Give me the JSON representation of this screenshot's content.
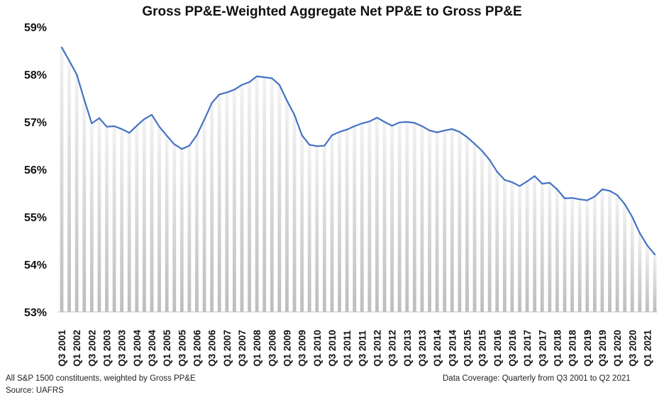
{
  "chart_data": {
    "type": "area",
    "title": "Gross PP&E-Weighted Aggregate Net PP&E to Gross PP&E",
    "xlabel": "",
    "ylabel": "",
    "ylim": [
      53,
      59
    ],
    "y_ticks": [
      "53%",
      "54%",
      "55%",
      "56%",
      "57%",
      "58%",
      "59%"
    ],
    "y_unit": "%",
    "x_tick_labels": [
      "Q3 2001",
      "Q1 2002",
      "Q3 2002",
      "Q1 2003",
      "Q3 2003",
      "Q1 2004",
      "Q3 2004",
      "Q1 2005",
      "Q3 2005",
      "Q1 2006",
      "Q3 2006",
      "Q1 2007",
      "Q3 2007",
      "Q1 2008",
      "Q3 2008",
      "Q1 2009",
      "Q3 2009",
      "Q1 2010",
      "Q3 2010",
      "Q1 2011",
      "Q3 2011",
      "Q1 2012",
      "Q3 2012",
      "Q1 2013",
      "Q3 2013",
      "Q1 2014",
      "Q3 2014",
      "Q1 2015",
      "Q3 2015",
      "Q1 2016",
      "Q3 2016",
      "Q1 2017",
      "Q3 2017",
      "Q1 2018",
      "Q3 2018",
      "Q1 2019",
      "Q3 2019",
      "Q1 2020",
      "Q3 2020",
      "Q1 2021"
    ],
    "categories": [
      "Q3 2001",
      "Q4 2001",
      "Q1 2002",
      "Q2 2002",
      "Q3 2002",
      "Q4 2002",
      "Q1 2003",
      "Q2 2003",
      "Q3 2003",
      "Q4 2003",
      "Q1 2004",
      "Q2 2004",
      "Q3 2004",
      "Q4 2004",
      "Q1 2005",
      "Q2 2005",
      "Q3 2005",
      "Q4 2005",
      "Q1 2006",
      "Q2 2006",
      "Q3 2006",
      "Q4 2006",
      "Q1 2007",
      "Q2 2007",
      "Q3 2007",
      "Q4 2007",
      "Q1 2008",
      "Q2 2008",
      "Q3 2008",
      "Q4 2008",
      "Q1 2009",
      "Q2 2009",
      "Q3 2009",
      "Q4 2009",
      "Q1 2010",
      "Q2 2010",
      "Q3 2010",
      "Q4 2010",
      "Q1 2011",
      "Q2 2011",
      "Q3 2011",
      "Q4 2011",
      "Q1 2012",
      "Q2 2012",
      "Q3 2012",
      "Q4 2012",
      "Q1 2013",
      "Q2 2013",
      "Q3 2013",
      "Q4 2013",
      "Q1 2014",
      "Q2 2014",
      "Q3 2014",
      "Q4 2014",
      "Q1 2015",
      "Q2 2015",
      "Q3 2015",
      "Q4 2015",
      "Q1 2016",
      "Q2 2016",
      "Q3 2016",
      "Q4 2016",
      "Q1 2017",
      "Q2 2017",
      "Q3 2017",
      "Q4 2017",
      "Q1 2018",
      "Q2 2018",
      "Q3 2018",
      "Q4 2018",
      "Q1 2019",
      "Q2 2019",
      "Q3 2019",
      "Q4 2019",
      "Q1 2020",
      "Q2 2020",
      "Q3 2020",
      "Q4 2020",
      "Q1 2021",
      "Q2 2021"
    ],
    "series": [
      {
        "values": [
          58.57,
          58.29,
          58.0,
          57.47,
          56.97,
          57.08,
          56.9,
          56.91,
          56.85,
          56.77,
          56.92,
          57.06,
          57.15,
          56.9,
          56.71,
          56.53,
          56.43,
          56.5,
          56.72,
          57.05,
          57.4,
          57.58,
          57.62,
          57.68,
          57.78,
          57.84,
          57.96,
          57.94,
          57.92,
          57.78,
          57.45,
          57.15,
          56.72,
          56.52,
          56.49,
          56.5,
          56.72,
          56.79,
          56.84,
          56.91,
          56.97,
          57.01,
          57.09,
          57.0,
          56.92,
          56.99,
          57.0,
          56.98,
          56.91,
          56.82,
          56.78,
          56.82,
          56.85,
          56.79,
          56.68,
          56.54,
          56.39,
          56.2,
          55.95,
          55.78,
          55.73,
          55.65,
          55.75,
          55.86,
          55.7,
          55.72,
          55.58,
          55.39,
          55.4,
          55.37,
          55.35,
          55.43,
          55.58,
          55.55,
          55.46,
          55.27,
          55.0,
          54.66,
          54.4,
          54.21
        ]
      }
    ],
    "grid": false,
    "legend": "none",
    "colors": {
      "line": "#4472C4",
      "bar": "#D9D9D9",
      "axis": "#BFBFBF"
    }
  },
  "footnotes": {
    "left": "All S&P 1500 constituents, weighted by Gross PP&E",
    "source": "Source: UAFRS",
    "right": "Data Coverage: Quarterly from Q3 2001 to Q2 2021"
  }
}
